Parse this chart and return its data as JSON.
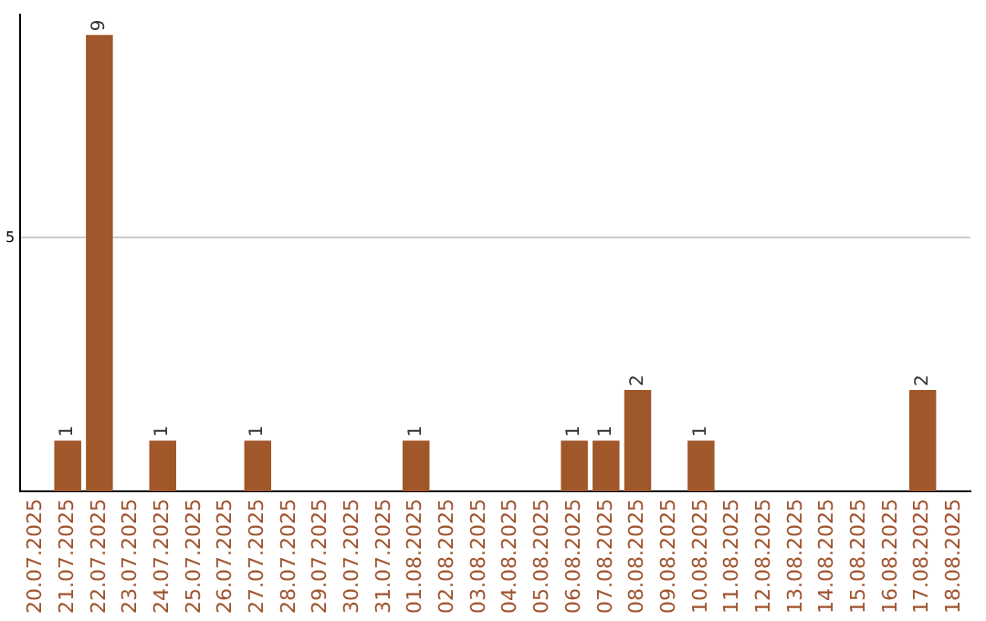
{
  "chart_data": {
    "type": "bar",
    "categories": [
      "20.07.2025",
      "21.07.2025",
      "22.07.2025",
      "23.07.2025",
      "24.07.2025",
      "25.07.2025",
      "26.07.2025",
      "27.07.2025",
      "28.07.2025",
      "29.07.2025",
      "30.07.2025",
      "31.07.2025",
      "01.08.2025",
      "02.08.2025",
      "03.08.2025",
      "04.08.2025",
      "05.08.2025",
      "06.08.2025",
      "07.08.2025",
      "08.08.2025",
      "09.08.2025",
      "10.08.2025",
      "11.08.2025",
      "12.08.2025",
      "13.08.2025",
      "14.08.2025",
      "15.08.2025",
      "16.08.2025",
      "17.08.2025",
      "18.08.2025"
    ],
    "values": [
      0,
      1,
      9,
      0,
      1,
      0,
      0,
      1,
      0,
      0,
      0,
      0,
      1,
      0,
      0,
      0,
      0,
      1,
      1,
      2,
      0,
      1,
      0,
      0,
      0,
      0,
      0,
      0,
      2,
      0
    ],
    "value_labels": [
      null,
      "1",
      "9",
      null,
      "1",
      null,
      null,
      "1",
      null,
      null,
      null,
      null,
      "1",
      null,
      null,
      null,
      null,
      "1",
      "1",
      "2",
      null,
      "1",
      null,
      null,
      null,
      null,
      null,
      null,
      "2",
      null
    ],
    "color": "#a0572a",
    "ylim": [
      0,
      9.4
    ],
    "yticks": [
      5
    ],
    "grid": "y",
    "legend": false
  }
}
